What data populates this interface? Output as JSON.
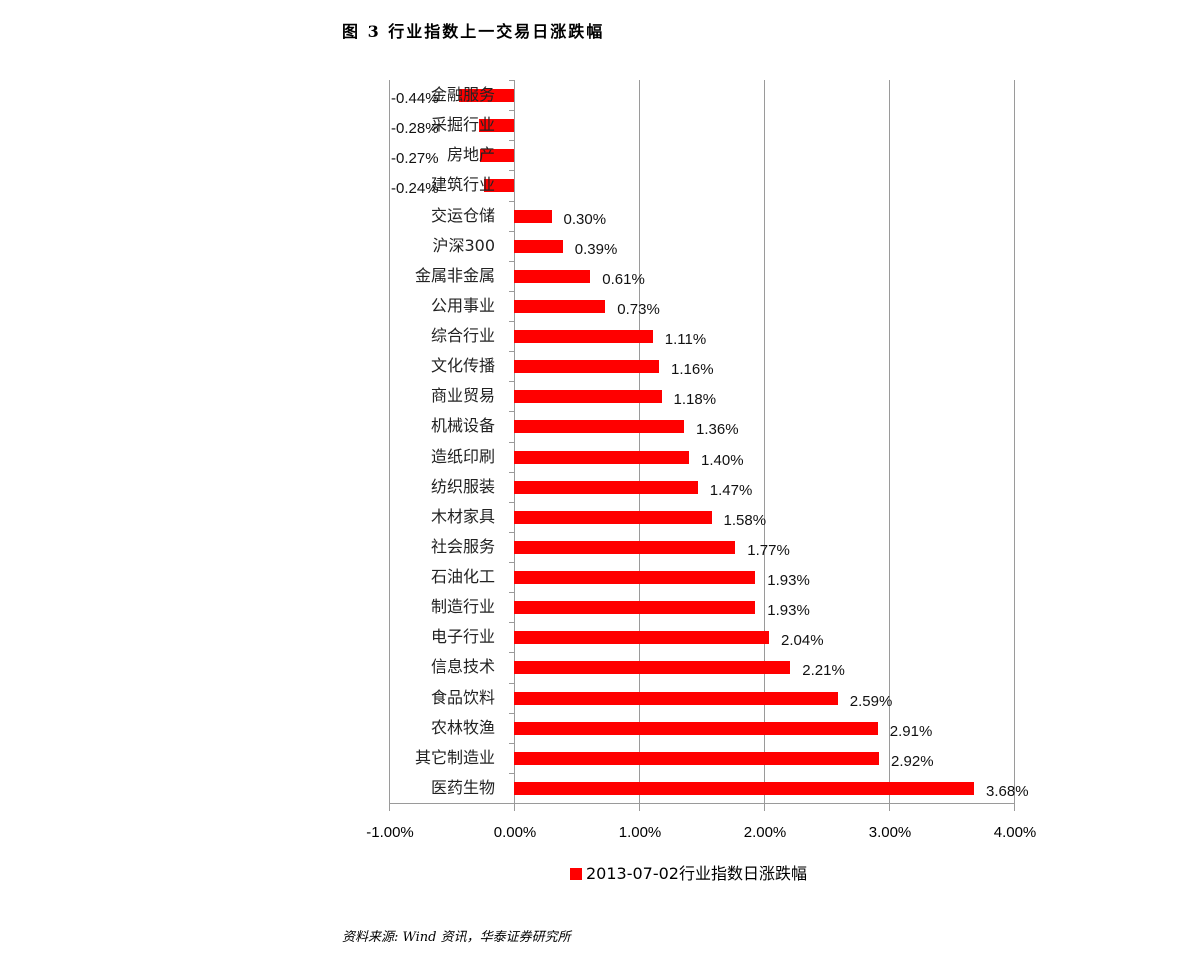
{
  "title": "图 3   行业指数上一交易日涨跌幅",
  "source": "资料来源: Wind 资讯，华泰证券研究所",
  "legend": {
    "label": "2013-07-02行业指数日涨跌幅",
    "color": "#ff0000"
  },
  "x_ticks": [
    "-1.00%",
    "0.00%",
    "1.00%",
    "2.00%",
    "3.00%",
    "4.00%"
  ],
  "chart_data": {
    "type": "bar",
    "orientation": "horizontal",
    "title": "图 3 行业指数上一交易日涨跌幅",
    "xlabel": "",
    "ylabel": "",
    "xlim": [
      -1.0,
      4.0
    ],
    "x_tick_labels": [
      "-1.00%",
      "0.00%",
      "1.00%",
      "2.00%",
      "3.00%",
      "4.00%"
    ],
    "grid": "vertical",
    "legend_position": "bottom",
    "series": [
      {
        "name": "2013-07-02行业指数日涨跌幅",
        "color": "#ff0000"
      }
    ],
    "categories": [
      "金融服务",
      "采掘行业",
      "房地产",
      "建筑行业",
      "交运仓储",
      "沪深300",
      "金属非金属",
      "公用事业",
      "综合行业",
      "文化传播",
      "商业贸易",
      "机械设备",
      "造纸印刷",
      "纺织服装",
      "木材家具",
      "社会服务",
      "石油化工",
      "制造行业",
      "电子行业",
      "信息技术",
      "食品饮料",
      "农林牧渔",
      "其它制造业",
      "医药生物"
    ],
    "values": [
      -0.44,
      -0.28,
      -0.27,
      -0.24,
      0.3,
      0.39,
      0.61,
      0.73,
      1.11,
      1.16,
      1.18,
      1.36,
      1.4,
      1.47,
      1.58,
      1.77,
      1.93,
      1.93,
      2.04,
      2.21,
      2.59,
      2.91,
      2.92,
      3.68
    ],
    "value_labels": [
      "-0.44%",
      "-0.28%",
      "-0.27%",
      "-0.24%",
      "0.30%",
      "0.39%",
      "0.61%",
      "0.73%",
      "1.11%",
      "1.16%",
      "1.18%",
      "1.36%",
      "1.40%",
      "1.47%",
      "1.58%",
      "1.77%",
      "1.93%",
      "1.93%",
      "2.04%",
      "2.21%",
      "2.59%",
      "2.91%",
      "2.92%",
      "3.68%"
    ]
  }
}
